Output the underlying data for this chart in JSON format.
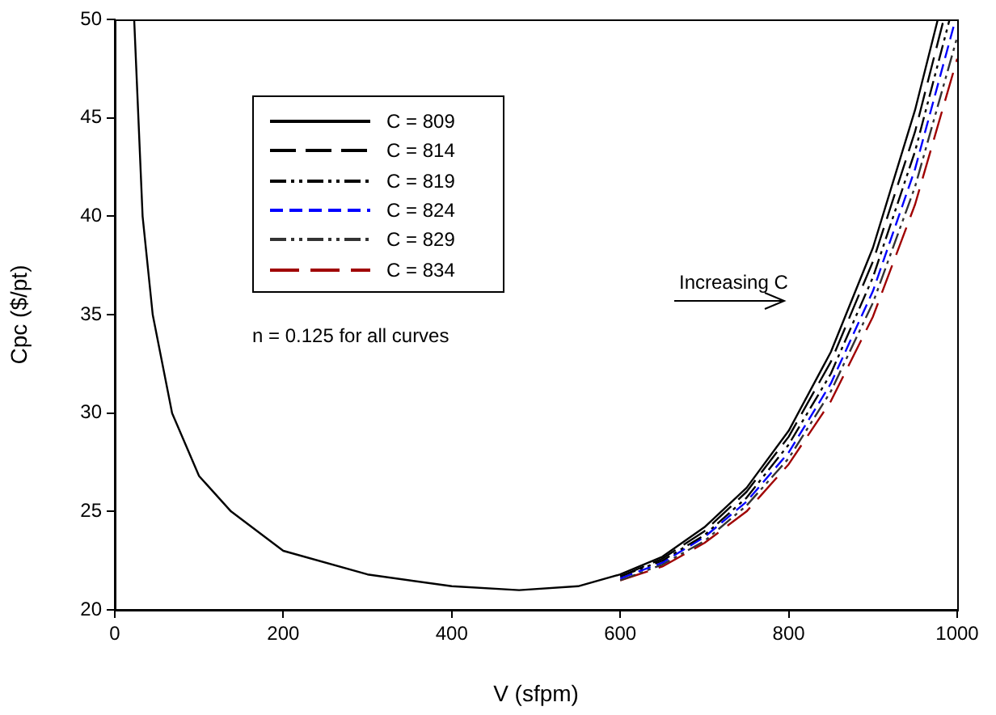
{
  "chart_data": {
    "type": "line",
    "xlabel": "V (sfpm)",
    "ylabel": "Cpc ($/pt)",
    "xlim": [
      0,
      1000
    ],
    "ylim": [
      20,
      50
    ],
    "xticks": [
      0,
      200,
      400,
      600,
      800,
      1000
    ],
    "yticks": [
      20,
      25,
      30,
      35,
      40,
      45,
      50
    ],
    "grid": false,
    "legend": "top left",
    "marker": "none",
    "annotations": [
      "n = 0.125 for all curves",
      "Increasing C"
    ],
    "series": [
      {
        "name": "C = 809",
        "color": "#000000",
        "line_style": "solid",
        "x": [
          23,
          28,
          33,
          45,
          68,
          100,
          138,
          200,
          300,
          400,
          480,
          550,
          600,
          650,
          700,
          750,
          800,
          850,
          900,
          950,
          977
        ],
        "values": [
          50,
          45,
          40,
          35,
          30,
          26.8,
          25,
          23,
          21.8,
          21.2,
          21.0,
          21.2,
          21.8,
          22.7,
          24.2,
          26.2,
          29.1,
          33.1,
          38.4,
          45.4,
          50
        ]
      },
      {
        "name": "C = 814",
        "color": "#000000",
        "line_style": "dashed",
        "x": [
          600,
          650,
          700,
          750,
          800,
          850,
          900,
          950,
          984
        ],
        "values": [
          21.7,
          22.6,
          24.0,
          26.0,
          28.8,
          32.6,
          37.7,
          44.3,
          50
        ]
      },
      {
        "name": "C = 819",
        "color": "#000000",
        "line_style": "dashed",
        "x": [
          600,
          650,
          700,
          750,
          800,
          850,
          900,
          950,
          991
        ],
        "values": [
          21.7,
          22.5,
          23.8,
          25.7,
          28.4,
          32.0,
          36.9,
          43.3,
          50
        ]
      },
      {
        "name": "C = 824",
        "color": "#0000ff",
        "line_style": "dashed",
        "x": [
          600,
          650,
          700,
          750,
          800,
          850,
          900,
          950,
          998
        ],
        "values": [
          21.6,
          22.4,
          23.7,
          25.5,
          28.0,
          31.5,
          36.2,
          42.4,
          50
        ]
      },
      {
        "name": "C = 829",
        "color": "#333333",
        "line_style": "dashed",
        "x": [
          600,
          650,
          700,
          750,
          800,
          850,
          900,
          950,
          1000
        ],
        "values": [
          21.5,
          22.3,
          23.5,
          25.3,
          27.7,
          31.1,
          35.6,
          41.5,
          49.1
        ]
      },
      {
        "name": "C = 834",
        "color": "#a00000",
        "line_style": "dashed",
        "x": [
          600,
          650,
          700,
          750,
          800,
          850,
          900,
          950,
          1000
        ],
        "values": [
          21.5,
          22.2,
          23.4,
          25.0,
          27.4,
          30.6,
          34.9,
          40.6,
          48.0
        ]
      }
    ]
  }
}
